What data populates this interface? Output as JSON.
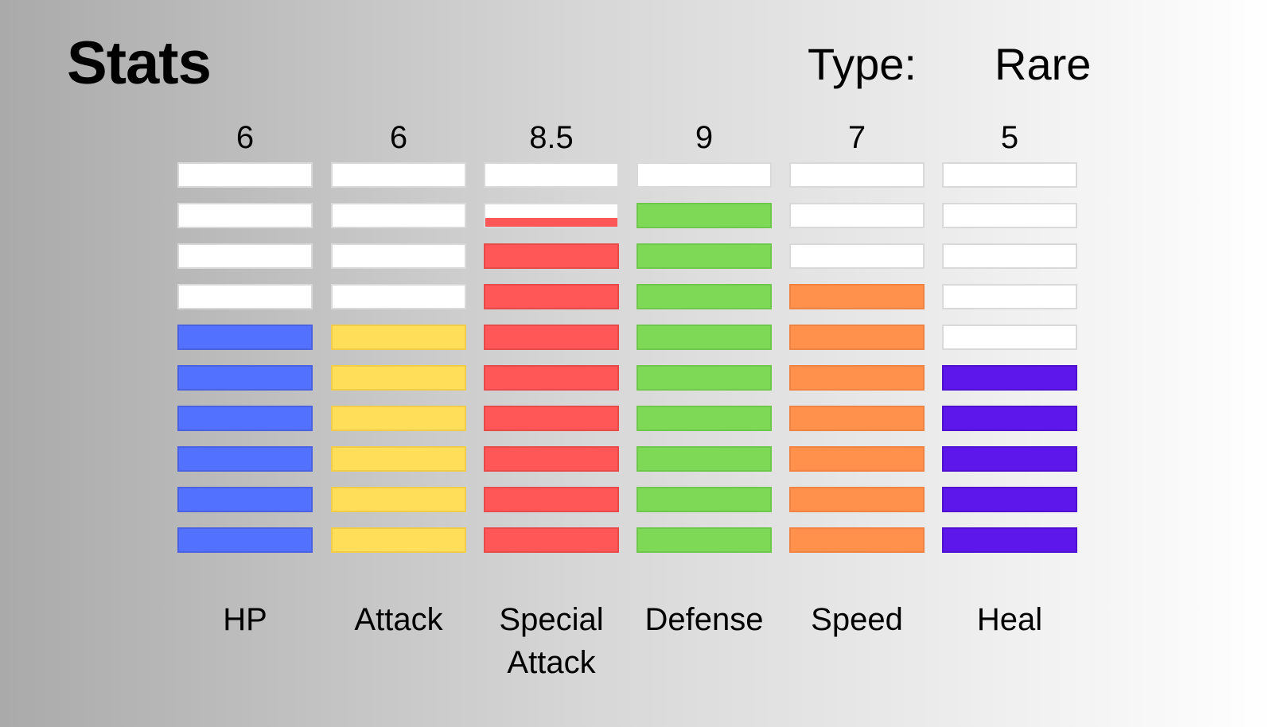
{
  "header": {
    "title": "Stats",
    "type_label": "Type:",
    "type_value": "Rare"
  },
  "chart_data": {
    "type": "bar",
    "ylim": [
      0,
      10
    ],
    "categories": [
      "HP",
      "Attack",
      "Special Attack",
      "Defense",
      "Speed",
      "Heal"
    ],
    "value_labels": [
      "6",
      "6",
      "8.5",
      "9",
      "7",
      "5"
    ],
    "values": [
      6,
      6,
      8.5,
      9,
      7,
      5
    ],
    "colors": [
      "#5271ff",
      "#ffde59",
      "#ff5757",
      "#7ed957",
      "#ff914d",
      "#5e17eb"
    ],
    "border_colors": [
      "#4a62e0",
      "#f0cc4a",
      "#e84a4a",
      "#6fc84c",
      "#ef8442",
      "#4f10d0"
    ],
    "empty_color": "#ffffff"
  }
}
